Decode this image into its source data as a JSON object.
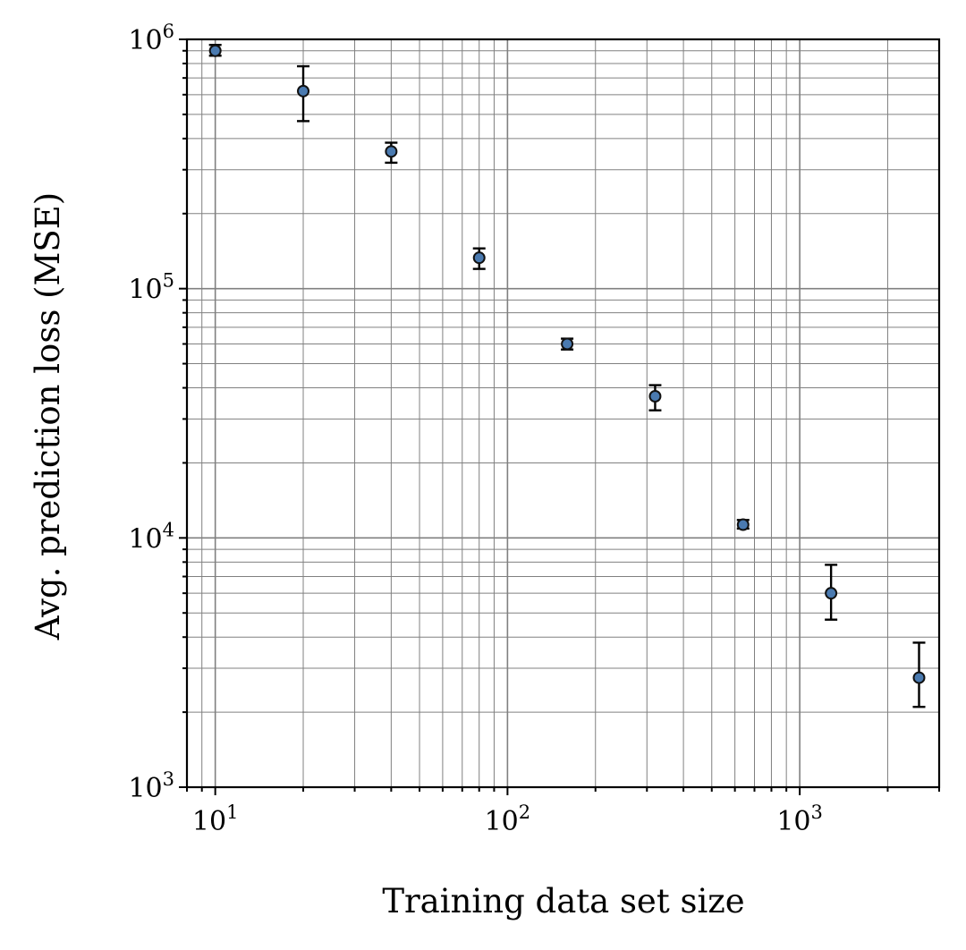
{
  "chart_data": {
    "type": "scatter",
    "title": "",
    "xlabel": "Training data set size",
    "ylabel": "Avg. prediction loss (MSE)",
    "xscale": "log",
    "yscale": "log",
    "xlim": [
      8,
      3000
    ],
    "ylim": [
      1000,
      1000000
    ],
    "grid": "major and minor, both axes",
    "marker_color": "#4a7ab0",
    "error_bar_color": "#000000",
    "grid_color": "#808080",
    "x_ticks": [
      {
        "value": 10,
        "base": "10",
        "exp": "1"
      },
      {
        "value": 100,
        "base": "10",
        "exp": "2"
      },
      {
        "value": 1000,
        "base": "10",
        "exp": "3"
      }
    ],
    "y_ticks": [
      {
        "value": 1000,
        "base": "10",
        "exp": "3"
      },
      {
        "value": 10000,
        "base": "10",
        "exp": "4"
      },
      {
        "value": 100000,
        "base": "10",
        "exp": "5"
      },
      {
        "value": 1000000,
        "base": "10",
        "exp": "6"
      }
    ],
    "points": [
      {
        "x": 10,
        "y": 900000,
        "y_low": 860000,
        "y_high": 950000
      },
      {
        "x": 20,
        "y": 620000,
        "y_low": 470000,
        "y_high": 780000
      },
      {
        "x": 40,
        "y": 355000,
        "y_low": 320000,
        "y_high": 385000
      },
      {
        "x": 80,
        "y": 133000,
        "y_low": 120000,
        "y_high": 145000
      },
      {
        "x": 160,
        "y": 60000,
        "y_low": 57000,
        "y_high": 63000
      },
      {
        "x": 320,
        "y": 37000,
        "y_low": 32500,
        "y_high": 41000
      },
      {
        "x": 640,
        "y": 11300,
        "y_low": 10900,
        "y_high": 11800
      },
      {
        "x": 1280,
        "y": 6000,
        "y_low": 4700,
        "y_high": 7800
      },
      {
        "x": 2560,
        "y": 2750,
        "y_low": 2100,
        "y_high": 3800
      }
    ]
  }
}
